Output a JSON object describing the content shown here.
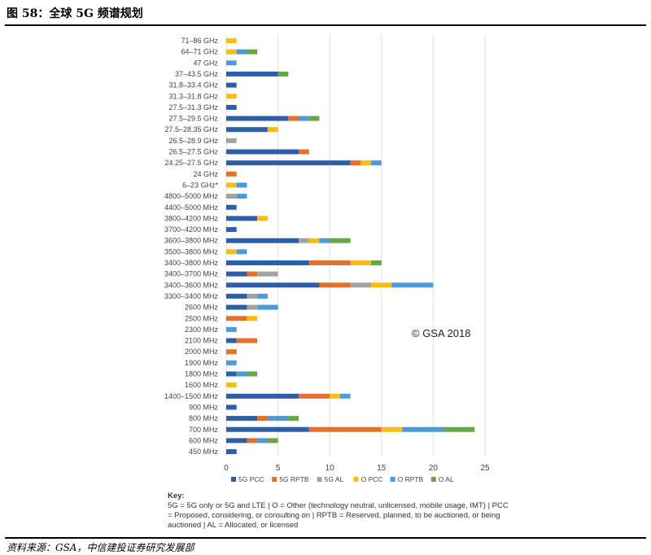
{
  "figure_title": "图 58：全球 5G 频谱规划",
  "source": "资料来源：GSA，中信建投证券研究发展部",
  "copyright": "© GSA 2018",
  "key": {
    "title": "Key:",
    "text": "5G = 5G only or 5G and LTE | O = Other (technology neutral, unlicensed, mobile usage, IMT) | PCC = Proposed, considering, or consulting on | RPTB = Reserved, planned, to be auctioned, or being auctioned | AL = Allocated, or licensed"
  },
  "chart_data": {
    "type": "bar",
    "orientation": "horizontal",
    "stacked": true,
    "categories": [
      "71–86 GHz",
      "64–71 GHz",
      "47 GHz",
      "37–43.5 GHz",
      "31.8–33.4 GHz",
      "31.3–31.8 GHz",
      "27.5–31.3 GHz",
      "27.5–29.5 GHz",
      "27.5–28.35 GHz",
      "26.5–28.9 GHz",
      "26.5–27.5 GHz",
      "24.25–27.5 GHz",
      "24 GHz",
      "6–23 GHz*",
      "4800–5000 MHz",
      "4400–5000 MHz",
      "3800–4200 MHz",
      "3700–4200 MHz",
      "3600–3800 MHz",
      "3500–3800 MHz",
      "3400–3800 MHz",
      "3400–3700 MHz",
      "3400–3600 MHz",
      "3300–3400 MHz",
      "2600 MHz",
      "2500 MHz",
      "2300 MHz",
      "2100 MHz",
      "2000 MHz",
      "1900 MHz",
      "1800 MHz",
      "1600 MHz",
      "1400–1500 MHz",
      "900 MHz",
      "800 MHz",
      "700 MHz",
      "600 MHz",
      "450 MHz"
    ],
    "series": [
      {
        "name": "5G PCC",
        "color": "#2e5ea8",
        "values": [
          0,
          0,
          0,
          5,
          1,
          0,
          1,
          6,
          4,
          0,
          7,
          12,
          0,
          0,
          0,
          1,
          3,
          1,
          7,
          0,
          8,
          2,
          9,
          2,
          2,
          0,
          0,
          1,
          0,
          0,
          1,
          0,
          7,
          1,
          3,
          8,
          2,
          1
        ]
      },
      {
        "name": "5G RPTB",
        "color": "#e2712b",
        "values": [
          0,
          0,
          0,
          0,
          0,
          0,
          0,
          1,
          0,
          0,
          1,
          1,
          1,
          0,
          0,
          0,
          0,
          0,
          0,
          0,
          4,
          1,
          3,
          0,
          0,
          2,
          0,
          2,
          1,
          0,
          0,
          0,
          3,
          0,
          1,
          7,
          1,
          0
        ]
      },
      {
        "name": "5G AL",
        "color": "#a3a3a3",
        "values": [
          0,
          0,
          0,
          0,
          0,
          0,
          0,
          0,
          0,
          1,
          0,
          0,
          0,
          0,
          1,
          0,
          0,
          0,
          1,
          0,
          0,
          2,
          2,
          1,
          1,
          0,
          0,
          0,
          0,
          0,
          0,
          0,
          0,
          0,
          0,
          0,
          0,
          0
        ]
      },
      {
        "name": "O PCC",
        "color": "#f5bd15",
        "values": [
          1,
          1,
          0,
          0,
          0,
          1,
          0,
          0,
          1,
          0,
          0,
          1,
          0,
          1,
          0,
          0,
          1,
          0,
          1,
          1,
          2,
          0,
          2,
          0,
          0,
          1,
          0,
          0,
          0,
          0,
          0,
          1,
          1,
          0,
          0,
          2,
          0,
          0
        ]
      },
      {
        "name": "O RPTB",
        "color": "#4a9bd8",
        "values": [
          0,
          1,
          1,
          0,
          0,
          0,
          0,
          1,
          0,
          0,
          0,
          1,
          0,
          1,
          1,
          0,
          0,
          0,
          1,
          1,
          0,
          0,
          4,
          1,
          2,
          0,
          1,
          0,
          0,
          1,
          1,
          0,
          1,
          0,
          2,
          4,
          1,
          0
        ]
      },
      {
        "name": "O AL",
        "color": "#65a745",
        "values": [
          0,
          1,
          0,
          1,
          0,
          0,
          0,
          1,
          0,
          0,
          0,
          0,
          0,
          0,
          0,
          0,
          0,
          0,
          2,
          0,
          1,
          0,
          0,
          0,
          0,
          0,
          0,
          0,
          0,
          0,
          1,
          0,
          0,
          0,
          1,
          3,
          1,
          0
        ]
      }
    ],
    "xlim": [
      0,
      25
    ],
    "xticks": [
      0,
      5,
      10,
      15,
      20,
      25
    ],
    "grid": "vertical",
    "legend": "bottom"
  }
}
